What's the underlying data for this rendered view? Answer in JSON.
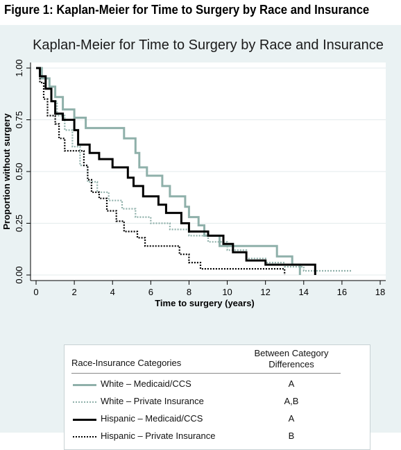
{
  "caption": "Figure 1:  Kaplan-Meier for Time to Surgery by Race and Insurance",
  "chart_data": {
    "type": "line",
    "step": true,
    "title": "Kaplan-Meier for Time to Surgery by Race and Insurance",
    "xlabel": "Time to surgery (years)",
    "ylabel": "Proportion without surgery",
    "xlim": [
      0,
      18
    ],
    "ylim": [
      0,
      1
    ],
    "xticks": [
      "0",
      "2",
      "4",
      "6",
      "8",
      "10",
      "12",
      "14",
      "16",
      "18"
    ],
    "yticks": [
      "0.00",
      "0.25",
      "0.50",
      "0.75",
      "1.00"
    ],
    "grid": true,
    "series": [
      {
        "name": "White – Medicaid/CCS",
        "color": "#8fb0aa",
        "dash": "solid",
        "diff": "A",
        "points": [
          [
            0,
            1
          ],
          [
            0.3,
            1
          ],
          [
            0.3,
            0.95
          ],
          [
            0.7,
            0.95
          ],
          [
            0.7,
            0.91
          ],
          [
            1,
            0.91
          ],
          [
            1,
            0.86
          ],
          [
            1.4,
            0.86
          ],
          [
            1.4,
            0.8
          ],
          [
            2,
            0.8
          ],
          [
            2,
            0.76
          ],
          [
            2.6,
            0.76
          ],
          [
            2.6,
            0.71
          ],
          [
            4.6,
            0.71
          ],
          [
            4.6,
            0.66
          ],
          [
            5.2,
            0.66
          ],
          [
            5.2,
            0.59
          ],
          [
            5.4,
            0.59
          ],
          [
            5.4,
            0.52
          ],
          [
            5.8,
            0.52
          ],
          [
            5.8,
            0.48
          ],
          [
            6.6,
            0.48
          ],
          [
            6.6,
            0.43
          ],
          [
            7,
            0.43
          ],
          [
            7,
            0.38
          ],
          [
            7.8,
            0.38
          ],
          [
            7.8,
            0.33
          ],
          [
            8,
            0.33
          ],
          [
            8,
            0.28
          ],
          [
            8.5,
            0.28
          ],
          [
            8.5,
            0.24
          ],
          [
            8.8,
            0.24
          ],
          [
            8.8,
            0.19
          ],
          [
            9.6,
            0.19
          ],
          [
            9.6,
            0.14
          ],
          [
            12.6,
            0.14
          ],
          [
            12.6,
            0.09
          ],
          [
            13.4,
            0.09
          ],
          [
            13.4,
            0.05
          ],
          [
            13.8,
            0.05
          ],
          [
            13.8,
            0
          ]
        ]
      },
      {
        "name": "White – Private Insurance",
        "color": "#8fb0aa",
        "dash": "dot",
        "diff": "A,B",
        "points": [
          [
            0,
            1
          ],
          [
            0.2,
            1
          ],
          [
            0.2,
            0.95
          ],
          [
            0.5,
            0.95
          ],
          [
            0.5,
            0.9
          ],
          [
            0.8,
            0.9
          ],
          [
            0.8,
            0.84
          ],
          [
            1.1,
            0.84
          ],
          [
            1.1,
            0.77
          ],
          [
            1.5,
            0.77
          ],
          [
            1.5,
            0.7
          ],
          [
            1.9,
            0.7
          ],
          [
            1.9,
            0.62
          ],
          [
            2.3,
            0.62
          ],
          [
            2.3,
            0.53
          ],
          [
            2.7,
            0.53
          ],
          [
            2.7,
            0.45
          ],
          [
            3.2,
            0.45
          ],
          [
            3.2,
            0.4
          ],
          [
            3.8,
            0.4
          ],
          [
            3.8,
            0.36
          ],
          [
            4.5,
            0.36
          ],
          [
            4.5,
            0.32
          ],
          [
            5.2,
            0.32
          ],
          [
            5.2,
            0.28
          ],
          [
            6,
            0.28
          ],
          [
            6,
            0.25
          ],
          [
            7,
            0.25
          ],
          [
            7,
            0.22
          ],
          [
            8,
            0.22
          ],
          [
            8,
            0.19
          ],
          [
            9,
            0.19
          ],
          [
            9,
            0.16
          ],
          [
            10,
            0.16
          ],
          [
            10,
            0.12
          ],
          [
            11,
            0.12
          ],
          [
            11,
            0.08
          ],
          [
            12,
            0.08
          ],
          [
            12,
            0.06
          ],
          [
            13,
            0.06
          ],
          [
            13,
            0.04
          ],
          [
            14,
            0.04
          ],
          [
            14,
            0.02
          ],
          [
            16.5,
            0.02
          ]
        ]
      },
      {
        "name": "Hispanic – Medicaid/CCS",
        "color": "#000000",
        "dash": "solid",
        "diff": "A",
        "points": [
          [
            0,
            1
          ],
          [
            0.2,
            1
          ],
          [
            0.2,
            0.96
          ],
          [
            0.5,
            0.96
          ],
          [
            0.5,
            0.9
          ],
          [
            0.8,
            0.9
          ],
          [
            0.8,
            0.84
          ],
          [
            1,
            0.84
          ],
          [
            1,
            0.78
          ],
          [
            1.4,
            0.78
          ],
          [
            1.4,
            0.75
          ],
          [
            2,
            0.75
          ],
          [
            2,
            0.7
          ],
          [
            2.2,
            0.7
          ],
          [
            2.2,
            0.63
          ],
          [
            2.8,
            0.63
          ],
          [
            2.8,
            0.59
          ],
          [
            3.3,
            0.59
          ],
          [
            3.3,
            0.56
          ],
          [
            4,
            0.56
          ],
          [
            4,
            0.52
          ],
          [
            4.8,
            0.52
          ],
          [
            4.8,
            0.47
          ],
          [
            5.1,
            0.47
          ],
          [
            5.1,
            0.43
          ],
          [
            5.6,
            0.43
          ],
          [
            5.6,
            0.38
          ],
          [
            6.4,
            0.38
          ],
          [
            6.4,
            0.34
          ],
          [
            6.8,
            0.34
          ],
          [
            6.8,
            0.3
          ],
          [
            7.6,
            0.3
          ],
          [
            7.6,
            0.25
          ],
          [
            8,
            0.25
          ],
          [
            8,
            0.21
          ],
          [
            9,
            0.21
          ],
          [
            9,
            0.19
          ],
          [
            9.8,
            0.19
          ],
          [
            9.8,
            0.15
          ],
          [
            10.3,
            0.15
          ],
          [
            10.3,
            0.11
          ],
          [
            11,
            0.11
          ],
          [
            11,
            0.07
          ],
          [
            12,
            0.07
          ],
          [
            12,
            0.05
          ],
          [
            14.6,
            0.05
          ],
          [
            14.6,
            0
          ]
        ]
      },
      {
        "name": "Hispanic – Private Insurance",
        "color": "#000000",
        "dash": "dot",
        "diff": "B",
        "points": [
          [
            0,
            1
          ],
          [
            0.2,
            1
          ],
          [
            0.2,
            0.93
          ],
          [
            0.4,
            0.93
          ],
          [
            0.4,
            0.85
          ],
          [
            0.6,
            0.85
          ],
          [
            0.6,
            0.77
          ],
          [
            1,
            0.77
          ],
          [
            1,
            0.73
          ],
          [
            1.2,
            0.73
          ],
          [
            1.2,
            0.66
          ],
          [
            1.5,
            0.66
          ],
          [
            1.5,
            0.6
          ],
          [
            2.5,
            0.6
          ],
          [
            2.5,
            0.53
          ],
          [
            2.7,
            0.53
          ],
          [
            2.7,
            0.46
          ],
          [
            2.9,
            0.46
          ],
          [
            2.9,
            0.4
          ],
          [
            3.3,
            0.4
          ],
          [
            3.3,
            0.37
          ],
          [
            3.7,
            0.37
          ],
          [
            3.7,
            0.31
          ],
          [
            4.2,
            0.31
          ],
          [
            4.2,
            0.26
          ],
          [
            4.6,
            0.26
          ],
          [
            4.6,
            0.21
          ],
          [
            5.3,
            0.21
          ],
          [
            5.3,
            0.18
          ],
          [
            5.7,
            0.18
          ],
          [
            5.7,
            0.14
          ],
          [
            7.5,
            0.14
          ],
          [
            7.5,
            0.1
          ],
          [
            8,
            0.1
          ],
          [
            8,
            0.06
          ],
          [
            8.6,
            0.06
          ],
          [
            8.6,
            0.03
          ],
          [
            13,
            0.03
          ],
          [
            13,
            0
          ]
        ]
      }
    ]
  },
  "legend": {
    "header_left": "Race-Insurance Categories",
    "header_right_1": "Between Category",
    "header_right_2": "Differences"
  }
}
